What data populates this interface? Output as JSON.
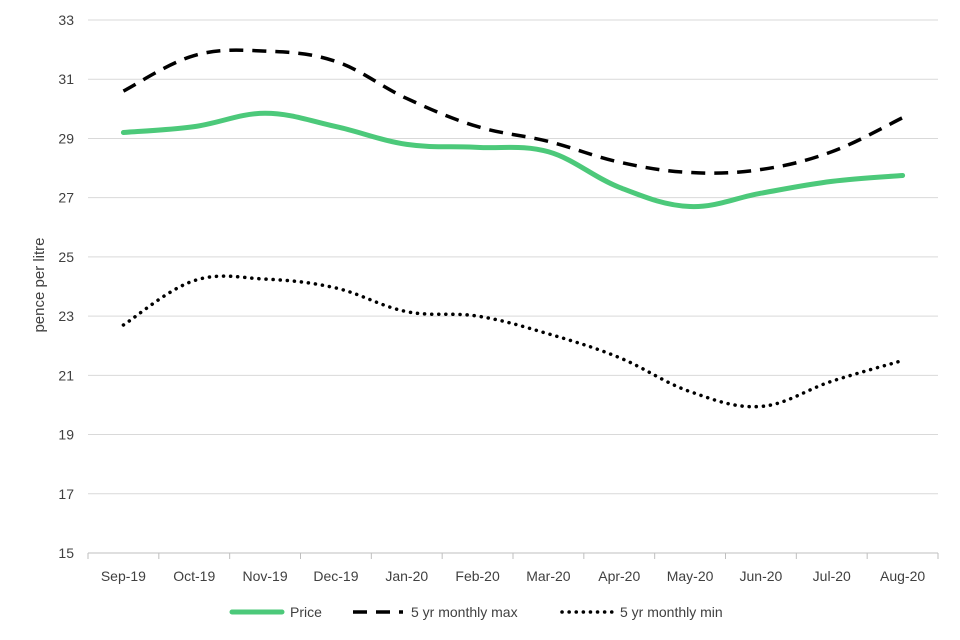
{
  "chart_data": {
    "type": "line",
    "categories": [
      "Sep-19",
      "Oct-19",
      "Nov-19",
      "Dec-19",
      "Jan-20",
      "Feb-20",
      "Mar-20",
      "Apr-20",
      "May-20",
      "Jun-20",
      "Jul-20",
      "Aug-20"
    ],
    "series": [
      {
        "name": "Price",
        "values": [
          29.2,
          29.4,
          29.85,
          29.4,
          28.8,
          28.7,
          28.55,
          27.35,
          26.7,
          27.15,
          27.55,
          27.75
        ],
        "color": "#4cc97a",
        "style": "solid"
      },
      {
        "name": "5 yr monthly max",
        "values": [
          30.6,
          31.8,
          31.95,
          31.6,
          30.35,
          29.4,
          28.9,
          28.2,
          27.85,
          27.95,
          28.55,
          29.7
        ],
        "color": "#000000",
        "style": "dashed"
      },
      {
        "name": "5 yr monthly min",
        "values": [
          22.7,
          24.2,
          24.25,
          23.95,
          23.15,
          23.0,
          22.4,
          21.6,
          20.45,
          19.95,
          20.8,
          21.5
        ],
        "color": "#000000",
        "style": "dotted"
      }
    ],
    "ylabel": "pence per litre",
    "ylim": [
      15,
      33
    ],
    "yticks": [
      15,
      17,
      19,
      21,
      23,
      25,
      27,
      29,
      31,
      33
    ],
    "grid": true,
    "legend_position": "bottom"
  }
}
